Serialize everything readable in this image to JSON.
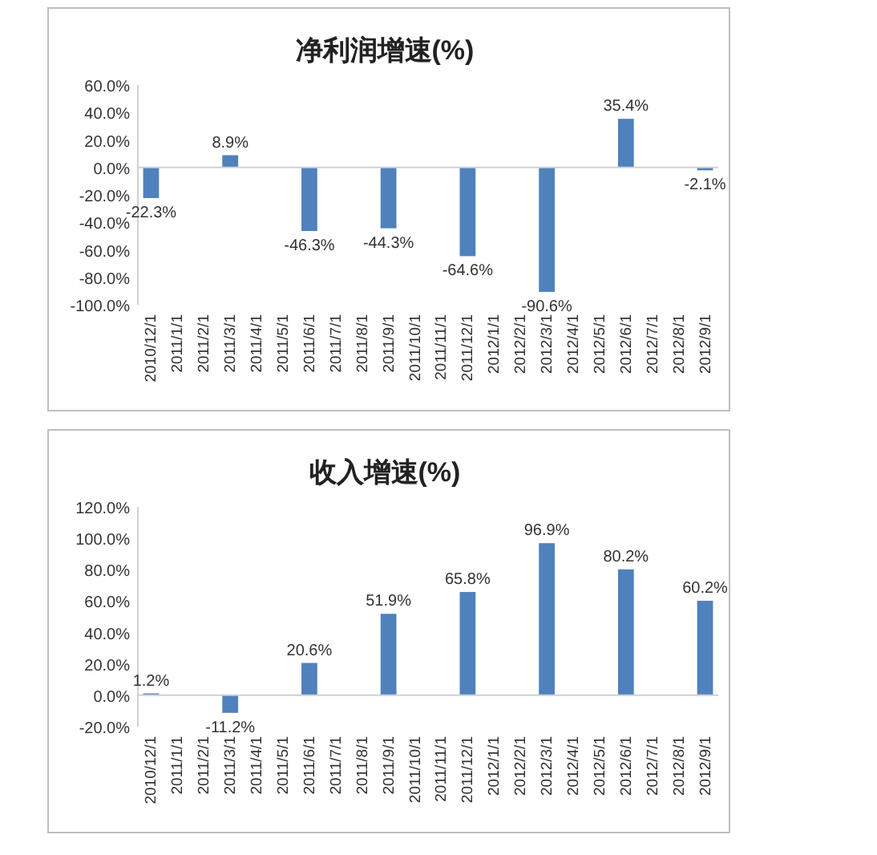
{
  "chart_data": [
    {
      "type": "bar",
      "title": "净利润增速(%)",
      "categories": [
        "2010/12/1",
        "2011/1/1",
        "2011/2/1",
        "2011/3/1",
        "2011/4/1",
        "2011/5/1",
        "2011/6/1",
        "2011/7/1",
        "2011/8/1",
        "2011/9/1",
        "2011/10/1",
        "2011/11/1",
        "2011/12/1",
        "2012/1/1",
        "2012/2/1",
        "2012/3/1",
        "2012/4/1",
        "2012/5/1",
        "2012/6/1",
        "2012/7/1",
        "2012/8/1",
        "2012/9/1"
      ],
      "values": [
        -22.3,
        null,
        null,
        8.9,
        null,
        null,
        -46.3,
        null,
        null,
        -44.3,
        null,
        null,
        -64.6,
        null,
        null,
        -90.6,
        null,
        null,
        35.4,
        null,
        null,
        -2.1
      ],
      "value_labels": [
        "-22.3%",
        null,
        null,
        "8.9%",
        null,
        null,
        "-46.3%",
        null,
        null,
        "-44.3%",
        null,
        null,
        "-64.6%",
        null,
        null,
        "-90.6%",
        null,
        null,
        "35.4%",
        null,
        null,
        "-2.1%"
      ],
      "color": "#4f81bd",
      "ylim": [
        -100,
        60
      ],
      "yticks": [
        {
          "value": -100,
          "label": "-100.0%"
        },
        {
          "value": -80,
          "label": "-80.0%"
        },
        {
          "value": -60,
          "label": "-60.0%"
        },
        {
          "value": -40,
          "label": "-40.0%"
        },
        {
          "value": -20,
          "label": "-20.0%"
        },
        {
          "value": 0,
          "label": "0.0%"
        },
        {
          "value": 20,
          "label": "20.0%"
        },
        {
          "value": 40,
          "label": "40.0%"
        },
        {
          "value": 60,
          "label": "60.0%"
        }
      ]
    },
    {
      "type": "bar",
      "title": "收入增速(%)",
      "categories": [
        "2010/12/1",
        "2011/1/1",
        "2011/2/1",
        "2011/3/1",
        "2011/4/1",
        "2011/5/1",
        "2011/6/1",
        "2011/7/1",
        "2011/8/1",
        "2011/9/1",
        "2011/10/1",
        "2011/11/1",
        "2011/12/1",
        "2012/1/1",
        "2012/2/1",
        "2012/3/1",
        "2012/4/1",
        "2012/5/1",
        "2012/6/1",
        "2012/7/1",
        "2012/8/1",
        "2012/9/1"
      ],
      "values": [
        1.2,
        null,
        null,
        -11.2,
        null,
        null,
        20.6,
        null,
        null,
        51.9,
        null,
        null,
        65.8,
        null,
        null,
        96.9,
        null,
        null,
        80.2,
        null,
        null,
        60.2
      ],
      "value_labels": [
        "1.2%",
        null,
        null,
        "-11.2%",
        null,
        null,
        "20.6%",
        null,
        null,
        "51.9%",
        null,
        null,
        "65.8%",
        null,
        null,
        "96.9%",
        null,
        null,
        "80.2%",
        null,
        null,
        "60.2%"
      ],
      "color": "#4f81bd",
      "ylim": [
        -20,
        120
      ],
      "yticks": [
        {
          "value": -20,
          "label": "-20.0%"
        },
        {
          "value": 0,
          "label": "0.0%"
        },
        {
          "value": 20,
          "label": "20.0%"
        },
        {
          "value": 40,
          "label": "40.0%"
        },
        {
          "value": 60,
          "label": "60.0%"
        },
        {
          "value": 80,
          "label": "80.0%"
        },
        {
          "value": 100,
          "label": "100.0%"
        },
        {
          "value": 120,
          "label": "120.0%"
        }
      ]
    }
  ]
}
